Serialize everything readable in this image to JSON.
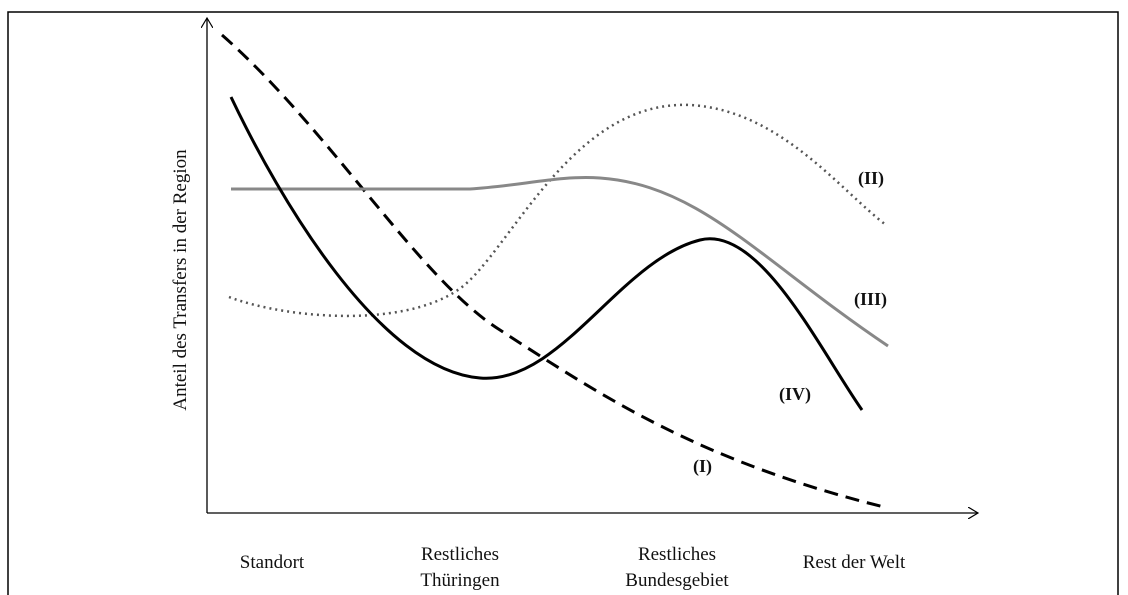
{
  "y_axis_label": "Anteil des Transfers in der Region",
  "categories": [
    [
      "Standort"
    ],
    [
      "Restliches",
      "Thüringen"
    ],
    [
      "Restliches",
      "Bundesgebiet"
    ],
    [
      "Rest der Welt"
    ]
  ],
  "curve_labels": [
    "(I)",
    "(II)",
    "(III)",
    "(IV)"
  ]
}
